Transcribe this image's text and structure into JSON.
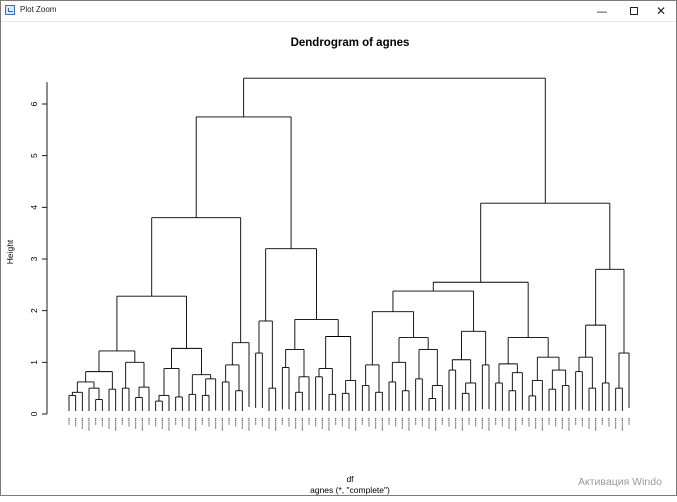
{
  "window": {
    "title": "Plot Zoom",
    "controls": {
      "minimize": "—",
      "maximize": "□",
      "close": "✕"
    }
  },
  "watermark": "Активация Windo",
  "chart_data": {
    "type": "dendrogram",
    "title": "Dendrogram of agnes",
    "xlabel": "df",
    "sublabel": "agnes (*, \"complete\")",
    "ylabel": "Height",
    "ylim": [
      0,
      6.5
    ],
    "yticks": [
      0,
      1,
      2,
      3,
      4,
      5,
      6
    ],
    "n_leaves": 140,
    "leaf_labels_legible": false,
    "merges": [
      {
        "id": "root",
        "h": 6.5,
        "children": [
          "L",
          "R"
        ]
      },
      {
        "id": "L",
        "h": 5.75,
        "children": [
          "L1",
          "L2"
        ]
      },
      {
        "id": "L1",
        "h": 3.8,
        "children": [
          "L1a",
          "L1b"
        ]
      },
      {
        "id": "L1a",
        "h": 2.28,
        "children": [
          "L1a1",
          "L1a2"
        ]
      },
      {
        "id": "L1a1",
        "h": 1.22,
        "children": [
          "A",
          "B"
        ]
      },
      {
        "id": "A",
        "h": 0.82,
        "children": [
          "A1",
          "A2"
        ]
      },
      {
        "id": "A1",
        "h": 0.62,
        "children": [
          "A1a",
          "A1b"
        ]
      },
      {
        "id": "A1a",
        "h": 0.42,
        "children": [
          "A1a1",
          1
        ]
      },
      {
        "id": "A1a1",
        "h": 0.36,
        "children": [
          1,
          1
        ]
      },
      {
        "id": "A1b",
        "h": 0.5,
        "children": [
          1,
          "A1b1"
        ]
      },
      {
        "id": "A1b1",
        "h": 0.28,
        "children": [
          1,
          1
        ]
      },
      {
        "id": "A2",
        "h": 0.48,
        "children": [
          1,
          1
        ]
      },
      {
        "id": "B",
        "h": 1.0,
        "children": [
          "B1",
          "B2"
        ]
      },
      {
        "id": "B1",
        "h": 0.5,
        "children": [
          1,
          1
        ]
      },
      {
        "id": "B2",
        "h": 0.52,
        "children": [
          "B2a",
          1
        ]
      },
      {
        "id": "B2a",
        "h": 0.32,
        "children": [
          1,
          1
        ]
      },
      {
        "id": "L1a2",
        "h": 1.27,
        "children": [
          "C",
          "D"
        ]
      },
      {
        "id": "C",
        "h": 0.88,
        "children": [
          "C1",
          "C2"
        ]
      },
      {
        "id": "C1",
        "h": 0.36,
        "children": [
          "C1a",
          1
        ]
      },
      {
        "id": "C1a",
        "h": 0.25,
        "children": [
          1,
          1
        ]
      },
      {
        "id": "C2",
        "h": 0.33,
        "children": [
          1,
          1
        ]
      },
      {
        "id": "D",
        "h": 0.76,
        "children": [
          "D1",
          "D2"
        ]
      },
      {
        "id": "D1",
        "h": 0.38,
        "children": [
          1,
          1
        ]
      },
      {
        "id": "D2",
        "h": 0.68,
        "children": [
          "D2a",
          1
        ]
      },
      {
        "id": "D2a",
        "h": 0.36,
        "children": [
          1,
          1
        ]
      },
      {
        "id": "L1b",
        "h": 1.38,
        "children": [
          "E",
          1
        ]
      },
      {
        "id": "E",
        "h": 0.95,
        "children": [
          "E1",
          "E2"
        ]
      },
      {
        "id": "E1",
        "h": 0.62,
        "children": [
          1,
          1
        ]
      },
      {
        "id": "E2",
        "h": 0.45,
        "children": [
          1,
          1
        ]
      },
      {
        "id": "L2",
        "h": 3.2,
        "children": [
          "L2a",
          "L2b"
        ]
      },
      {
        "id": "L2a",
        "h": 1.8,
        "children": [
          "F",
          "G"
        ]
      },
      {
        "id": "F",
        "h": 1.18,
        "children": [
          1,
          1
        ]
      },
      {
        "id": "G",
        "h": 0.5,
        "children": [
          1,
          1
        ]
      },
      {
        "id": "L2b",
        "h": 1.83,
        "children": [
          "H",
          "I"
        ]
      },
      {
        "id": "H",
        "h": 1.25,
        "children": [
          "H1",
          "H2"
        ]
      },
      {
        "id": "H1",
        "h": 0.9,
        "children": [
          1,
          1
        ]
      },
      {
        "id": "H2",
        "h": 0.72,
        "children": [
          "H2a",
          1
        ]
      },
      {
        "id": "H2a",
        "h": 0.42,
        "children": [
          1,
          1
        ]
      },
      {
        "id": "I",
        "h": 1.5,
        "children": [
          "I1",
          "I2"
        ]
      },
      {
        "id": "I1",
        "h": 0.88,
        "children": [
          "I1a",
          "I1b"
        ]
      },
      {
        "id": "I1a",
        "h": 0.72,
        "children": [
          1,
          1
        ]
      },
      {
        "id": "I1b",
        "h": 0.38,
        "children": [
          1,
          1
        ]
      },
      {
        "id": "I2",
        "h": 0.65,
        "children": [
          "I2a",
          1
        ]
      },
      {
        "id": "I2a",
        "h": 0.4,
        "children": [
          1,
          1
        ]
      },
      {
        "id": "R",
        "h": 4.08,
        "children": [
          "R1",
          "R2"
        ]
      },
      {
        "id": "R1",
        "h": 2.55,
        "children": [
          "R1a",
          "R1b"
        ]
      },
      {
        "id": "R1a",
        "h": 2.38,
        "children": [
          "R1a1",
          "R1a2"
        ]
      },
      {
        "id": "R1a1",
        "h": 1.98,
        "children": [
          "J",
          "K"
        ]
      },
      {
        "id": "J",
        "h": 0.95,
        "children": [
          "J1",
          "J2"
        ]
      },
      {
        "id": "J1",
        "h": 0.55,
        "children": [
          1,
          1
        ]
      },
      {
        "id": "J2",
        "h": 0.42,
        "children": [
          1,
          1
        ]
      },
      {
        "id": "K",
        "h": 1.48,
        "children": [
          "K1",
          "K2"
        ]
      },
      {
        "id": "K1",
        "h": 1.0,
        "children": [
          "K1a",
          "K1b"
        ]
      },
      {
        "id": "K1a",
        "h": 0.62,
        "children": [
          1,
          1
        ]
      },
      {
        "id": "K1b",
        "h": 0.45,
        "children": [
          1,
          1
        ]
      },
      {
        "id": "K2",
        "h": 1.25,
        "children": [
          "K2a",
          "K2b"
        ]
      },
      {
        "id": "K2a",
        "h": 0.68,
        "children": [
          1,
          1
        ]
      },
      {
        "id": "K2b",
        "h": 0.55,
        "children": [
          "K2b1",
          1
        ]
      },
      {
        "id": "K2b1",
        "h": 0.3,
        "children": [
          1,
          1
        ]
      },
      {
        "id": "R1a2",
        "h": 1.6,
        "children": [
          "M",
          "N"
        ]
      },
      {
        "id": "M",
        "h": 1.05,
        "children": [
          "M1",
          "M2"
        ]
      },
      {
        "id": "M1",
        "h": 0.85,
        "children": [
          1,
          1
        ]
      },
      {
        "id": "M2",
        "h": 0.6,
        "children": [
          "M2a",
          1
        ]
      },
      {
        "id": "M2a",
        "h": 0.4,
        "children": [
          1,
          1
        ]
      },
      {
        "id": "N",
        "h": 0.95,
        "children": [
          1,
          1
        ]
      },
      {
        "id": "R1b",
        "h": 1.48,
        "children": [
          "O",
          "P"
        ]
      },
      {
        "id": "O",
        "h": 0.97,
        "children": [
          "O1",
          "O2"
        ]
      },
      {
        "id": "O1",
        "h": 0.6,
        "children": [
          1,
          1
        ]
      },
      {
        "id": "O2",
        "h": 0.8,
        "children": [
          "O2a",
          1
        ]
      },
      {
        "id": "O2a",
        "h": 0.45,
        "children": [
          1,
          1
        ]
      },
      {
        "id": "P",
        "h": 1.1,
        "children": [
          "P1",
          "P2"
        ]
      },
      {
        "id": "P1",
        "h": 0.65,
        "children": [
          "P1a",
          1
        ]
      },
      {
        "id": "P1a",
        "h": 0.35,
        "children": [
          1,
          1
        ]
      },
      {
        "id": "P2",
        "h": 0.85,
        "children": [
          "P2a",
          "P2b"
        ]
      },
      {
        "id": "P2a",
        "h": 0.48,
        "children": [
          1,
          1
        ]
      },
      {
        "id": "P2b",
        "h": 0.55,
        "children": [
          1,
          1
        ]
      },
      {
        "id": "R2",
        "h": 2.8,
        "children": [
          "Q",
          "S"
        ]
      },
      {
        "id": "Q",
        "h": 1.72,
        "children": [
          "Q1",
          "Q2"
        ]
      },
      {
        "id": "Q1",
        "h": 1.1,
        "children": [
          "Q1a",
          "Q1b"
        ]
      },
      {
        "id": "Q1a",
        "h": 0.82,
        "children": [
          1,
          1
        ]
      },
      {
        "id": "Q1b",
        "h": 0.5,
        "children": [
          1,
          1
        ]
      },
      {
        "id": "Q2",
        "h": 0.6,
        "children": [
          1,
          1
        ]
      },
      {
        "id": "S",
        "h": 1.18,
        "children": [
          "S1",
          1
        ]
      },
      {
        "id": "S1",
        "h": 0.5,
        "children": [
          1,
          1
        ]
      }
    ]
  }
}
